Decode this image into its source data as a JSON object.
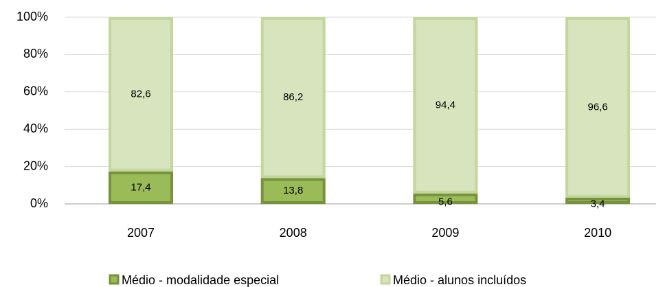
{
  "chart_data": {
    "type": "stacked_bar",
    "categories": [
      "2007",
      "2008",
      "2009",
      "2010"
    ],
    "series": [
      {
        "name": "Médio - modalidade especial",
        "color": "#9bbb59",
        "values": [
          17.4,
          13.8,
          5.6,
          3.4
        ],
        "value_labels": [
          "17,4",
          "13,8",
          "5,6",
          "3,4"
        ]
      },
      {
        "name": "Médio - alunos incluídos",
        "color": "#d7e4bd",
        "values": [
          82.6,
          86.2,
          94.4,
          96.6
        ],
        "value_labels": [
          "82,6",
          "86,2",
          "94,4",
          "96,6"
        ]
      }
    ],
    "ylim": [
      0,
      100
    ],
    "yticks": [
      {
        "value": 0,
        "label": "0%"
      },
      {
        "value": 20,
        "label": "20%"
      },
      {
        "value": 40,
        "label": "40%"
      },
      {
        "value": 60,
        "label": "60%"
      },
      {
        "value": 80,
        "label": "80%"
      },
      {
        "value": 100,
        "label": "100%"
      }
    ],
    "grid": true,
    "legend": "bottom"
  }
}
